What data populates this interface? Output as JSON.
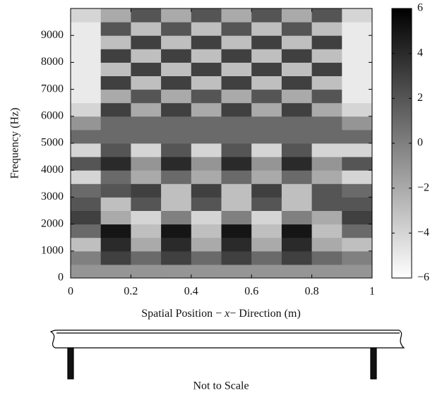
{
  "chart_data": {
    "type": "heatmap",
    "xlabel": [
      "Spatial Position − ",
      "x",
      "− Direction (m)"
    ],
    "ylabel": "Frequency (Hz)",
    "caption": "Not to Scale",
    "xlim": [
      0,
      1
    ],
    "xticks": [
      0,
      0.2,
      0.4,
      0.6,
      0.8,
      1
    ],
    "ylim": [
      0,
      10000
    ],
    "yticks": [
      0,
      1000,
      2000,
      3000,
      4000,
      5000,
      6000,
      7000,
      8000,
      9000
    ],
    "clim": [
      -6,
      6
    ],
    "cticks": [
      {
        "value": -6,
        "label": "−6"
      },
      {
        "value": -4,
        "label": "−4"
      },
      {
        "value": -2,
        "label": "−2"
      },
      0,
      2,
      4,
      6
    ],
    "xbins": [
      0,
      0.1,
      0.2,
      0.3,
      0.4,
      0.5,
      0.6,
      0.7,
      0.8,
      0.9,
      1
    ],
    "ybins": [
      0,
      500,
      1000,
      1500,
      2000,
      2500,
      3000,
      3500,
      4000,
      4500,
      5000,
      5500,
      6000,
      6500,
      7000,
      7500,
      8000,
      8500,
      9000,
      9500,
      10000
    ],
    "z": [
      [
        -1,
        -1,
        -1,
        -1,
        -1,
        -1,
        -1,
        -1,
        -1,
        -1
      ],
      [
        0,
        3,
        1,
        3,
        1,
        3,
        1,
        3,
        1,
        0
      ],
      [
        -3,
        4,
        -2,
        4,
        -2,
        4,
        -2,
        4,
        -2,
        -3
      ],
      [
        1,
        5,
        -3,
        5,
        -3,
        5,
        -3,
        5,
        -3,
        1
      ],
      [
        3,
        -2,
        -4,
        0,
        -4,
        0,
        -4,
        0,
        -2,
        3
      ],
      [
        2,
        -3,
        2,
        -3,
        2,
        -3,
        2,
        -3,
        2,
        2
      ],
      [
        1,
        2,
        3,
        -3,
        3,
        -3,
        3,
        -3,
        2,
        1
      ],
      [
        -4,
        1,
        -2,
        1,
        -2,
        1,
        -2,
        1,
        -2,
        -4
      ],
      [
        2,
        4,
        -1,
        4,
        -1,
        4,
        -1,
        4,
        -1,
        2
      ],
      [
        -4,
        2,
        -4,
        2,
        -4,
        2,
        -4,
        2,
        -4,
        -4
      ],
      [
        1,
        1,
        1,
        1,
        1,
        1,
        1,
        1,
        1,
        1
      ],
      [
        -1,
        1,
        1,
        1,
        1,
        1,
        1,
        1,
        1,
        -1
      ],
      [
        -4,
        3,
        -2,
        3,
        -2,
        3,
        -2,
        3,
        -2,
        -4
      ],
      [
        -5,
        -2,
        2,
        -2,
        2,
        -2,
        2,
        -2,
        2,
        -5
      ],
      [
        -5,
        3,
        -3,
        3,
        -3,
        3,
        -3,
        3,
        -3,
        -5
      ],
      [
        -5,
        -3,
        3,
        -3,
        3,
        -3,
        3,
        -3,
        3,
        -5
      ],
      [
        -5,
        3,
        -3,
        3,
        -3,
        3,
        -3,
        3,
        -3,
        -5
      ],
      [
        -5,
        -3,
        3,
        -3,
        3,
        -3,
        3,
        -3,
        3,
        -5
      ],
      [
        -5,
        2,
        -3,
        2,
        -3,
        2,
        -3,
        2,
        -3,
        -5
      ],
      [
        -4,
        -2,
        2,
        -2,
        2,
        -2,
        2,
        -2,
        2,
        -4
      ]
    ]
  }
}
